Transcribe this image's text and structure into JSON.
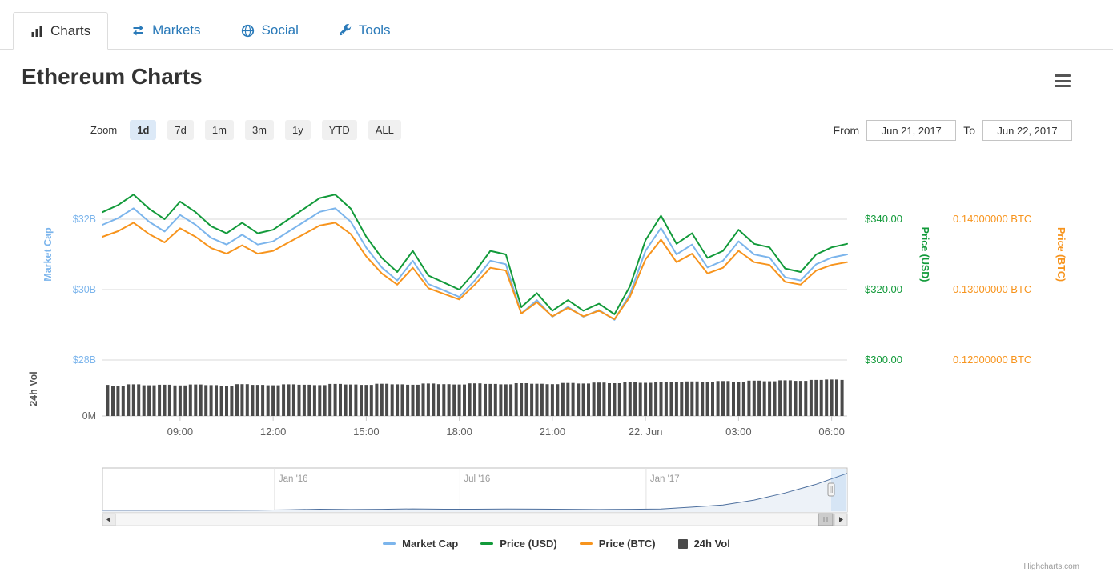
{
  "tabs": [
    {
      "label": "Charts",
      "active": true
    },
    {
      "label": "Markets",
      "active": false
    },
    {
      "label": "Social",
      "active": false
    },
    {
      "label": "Tools",
      "active": false
    }
  ],
  "header": {
    "title": "Ethereum Charts"
  },
  "range_selector": {
    "zoom_label": "Zoom",
    "buttons": [
      {
        "label": "1d",
        "active": true
      },
      {
        "label": "7d",
        "active": false
      },
      {
        "label": "1m",
        "active": false
      },
      {
        "label": "3m",
        "active": false
      },
      {
        "label": "1y",
        "active": false
      },
      {
        "label": "YTD",
        "active": false
      },
      {
        "label": "ALL",
        "active": false
      }
    ],
    "from_label": "From",
    "from_value": "Jun 21, 2017",
    "to_label": "To",
    "to_value": "Jun 22, 2017"
  },
  "chart_data": {
    "type": "line",
    "x": [
      "06:30",
      "07:00",
      "07:30",
      "08:00",
      "08:30",
      "09:00",
      "09:30",
      "10:00",
      "10:30",
      "11:00",
      "11:30",
      "12:00",
      "12:30",
      "13:00",
      "13:30",
      "14:00",
      "14:30",
      "15:00",
      "15:30",
      "16:00",
      "16:30",
      "17:00",
      "17:30",
      "18:00",
      "18:30",
      "19:00",
      "19:30",
      "20:00",
      "20:30",
      "21:00",
      "21:30",
      "22:00",
      "22:30",
      "23:00",
      "23:30",
      "00:00",
      "00:30",
      "01:00",
      "01:30",
      "02:00",
      "02:30",
      "03:00",
      "03:30",
      "04:00",
      "04:30",
      "05:00",
      "05:30",
      "06:00",
      "06:30"
    ],
    "x_ticks": [
      {
        "index": 5,
        "label": "09:00"
      },
      {
        "index": 11,
        "label": "12:00"
      },
      {
        "index": 17,
        "label": "15:00"
      },
      {
        "index": 23,
        "label": "18:00"
      },
      {
        "index": 29,
        "label": "21:00"
      },
      {
        "index": 35,
        "label": "22. Jun"
      },
      {
        "index": 41,
        "label": "03:00"
      },
      {
        "index": 47,
        "label": "06:00"
      }
    ],
    "series": [
      {
        "name": "Market Cap",
        "type": "line",
        "axis": "cap",
        "color": "#7cb5ec",
        "unit": "USD billions",
        "values": [
          31.84,
          32.03,
          32.31,
          31.93,
          31.65,
          32.12,
          31.84,
          31.47,
          31.28,
          31.56,
          31.28,
          31.37,
          31.65,
          31.93,
          32.21,
          32.31,
          31.93,
          31.19,
          30.63,
          30.26,
          30.82,
          30.16,
          29.98,
          29.79,
          30.26,
          30.82,
          30.72,
          29.32,
          29.7,
          29.23,
          29.51,
          29.23,
          29.42,
          29.14,
          29.88,
          31.1,
          31.75,
          31.0,
          31.28,
          30.63,
          30.82,
          31.37,
          31.0,
          30.91,
          30.35,
          30.26,
          30.72,
          30.91,
          31.0
        ]
      },
      {
        "name": "Price (USD)",
        "type": "line",
        "axis": "usd",
        "color": "#129a3a",
        "unit": "USD",
        "values": [
          342,
          344,
          347,
          343,
          340,
          345,
          342,
          338,
          336,
          339,
          336,
          337,
          340,
          343,
          346,
          347,
          343,
          335,
          329,
          325,
          331,
          324,
          322,
          320,
          325,
          331,
          330,
          315,
          319,
          314,
          317,
          314,
          316,
          313,
          321,
          334,
          341,
          333,
          336,
          329,
          331,
          337,
          333,
          332,
          326,
          325,
          330,
          332,
          333
        ]
      },
      {
        "name": "Price (BTC)",
        "type": "line",
        "axis": "btc",
        "color": "#f7941d",
        "unit": "BTC",
        "values": [
          0.1375,
          0.1383,
          0.1395,
          0.1379,
          0.1367,
          0.1387,
          0.1375,
          0.1359,
          0.1351,
          0.1363,
          0.1351,
          0.1355,
          0.1367,
          0.1379,
          0.1391,
          0.1395,
          0.1379,
          0.1347,
          0.1323,
          0.1307,
          0.1331,
          0.1302,
          0.1294,
          0.1286,
          0.1307,
          0.1331,
          0.1327,
          0.1266,
          0.1282,
          0.1262,
          0.1274,
          0.1262,
          0.127,
          0.1258,
          0.129,
          0.1343,
          0.1371,
          0.1339,
          0.1351,
          0.1323,
          0.1331,
          0.1355,
          0.1339,
          0.1335,
          0.1311,
          0.1307,
          0.1327,
          0.1335,
          0.1339
        ]
      },
      {
        "name": "24h Vol",
        "type": "column",
        "axis": "vol",
        "color": "#4a4a4a",
        "unit": "USD billions",
        "values": [
          1.62,
          1.58,
          1.65,
          1.6,
          1.63,
          1.59,
          1.64,
          1.61,
          1.58,
          1.66,
          1.62,
          1.6,
          1.65,
          1.63,
          1.61,
          1.67,
          1.64,
          1.62,
          1.68,
          1.65,
          1.63,
          1.69,
          1.66,
          1.64,
          1.7,
          1.67,
          1.65,
          1.71,
          1.68,
          1.66,
          1.72,
          1.69,
          1.74,
          1.71,
          1.76,
          1.73,
          1.78,
          1.75,
          1.8,
          1.77,
          1.82,
          1.79,
          1.84,
          1.81,
          1.86,
          1.83,
          1.88,
          1.9,
          1.88
        ]
      }
    ],
    "axes": {
      "cap": {
        "title": "Market Cap",
        "color": "#7cb5ec",
        "tick_labels": [
          "$32B",
          "$30B",
          "$28B"
        ],
        "tick_values": [
          32,
          30,
          28
        ]
      },
      "usd": {
        "title": "Price (USD)",
        "color": "#129a3a",
        "tick_labels": [
          "$340.00",
          "$320.00",
          "$300.00"
        ],
        "tick_values": [
          340,
          320,
          300
        ]
      },
      "btc": {
        "title": "Price (BTC)",
        "color": "#f7941d",
        "tick_labels": [
          "0.14000000 BTC",
          "0.13000000 BTC",
          "0.12000000 BTC"
        ],
        "tick_values": [
          0.14,
          0.13,
          0.12
        ]
      },
      "vol": {
        "title": "24h Vol",
        "color": "#555555",
        "tick_labels": [
          "0M"
        ],
        "tick_values": [
          0
        ]
      }
    },
    "grid": true,
    "legend_position": "bottom-center",
    "navigator": {
      "ticks": [
        {
          "label": "Jan '16",
          "f": 0.231
        },
        {
          "label": "Jul '16",
          "f": 0.48
        },
        {
          "label": "Jan '17",
          "f": 0.73
        }
      ],
      "values": [
        1,
        1,
        1,
        1,
        1,
        2,
        6,
        11,
        8,
        10,
        14,
        11,
        11,
        13,
        12,
        10,
        8,
        10,
        13,
        30,
        50,
        95,
        160,
        240,
        340
      ],
      "max": 360,
      "line_color": "#4d6f9e",
      "fill_color": "#edf2f8"
    },
    "credit": "Highcharts.com"
  },
  "legend": {
    "items": [
      {
        "label": "Market Cap",
        "color": "#7cb5ec",
        "marker": "line"
      },
      {
        "label": "Price (USD)",
        "color": "#129a3a",
        "marker": "line"
      },
      {
        "label": "Price (BTC)",
        "color": "#f7941d",
        "marker": "line"
      },
      {
        "label": "24h Vol",
        "color": "#4a4a4a",
        "marker": "square"
      }
    ]
  }
}
